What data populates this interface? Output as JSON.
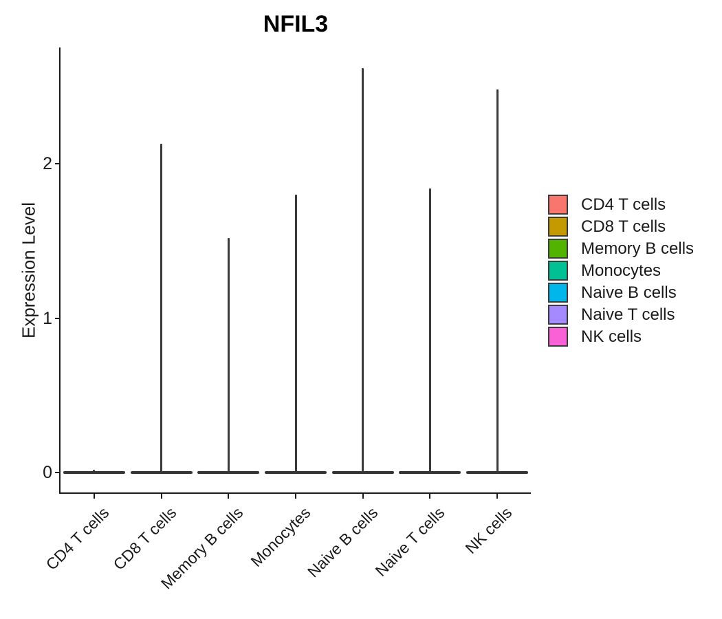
{
  "title": "NFIL3",
  "y_axis": {
    "label": "Expression Level",
    "tick_labels": [
      "0",
      "1",
      "2"
    ]
  },
  "x_axis": {
    "tick_labels": [
      "CD4 T cells",
      "CD8 T cells",
      "Memory B cells",
      "Monocytes",
      "Naive B cells",
      "Naive T cells",
      "NK cells"
    ]
  },
  "legend": {
    "entries": [
      {
        "label": "CD4 T cells",
        "color": "#F8766D"
      },
      {
        "label": "CD8 T cells",
        "color": "#C49A00"
      },
      {
        "label": "Memory B cells",
        "color": "#53B400"
      },
      {
        "label": "Monocytes",
        "color": "#00C094"
      },
      {
        "label": "Naive B cells",
        "color": "#00B6EB"
      },
      {
        "label": "Naive T cells",
        "color": "#A58AFF"
      },
      {
        "label": "NK cells",
        "color": "#FB61D7"
      }
    ]
  },
  "chart_data": {
    "type": "violin",
    "title": "NFIL3",
    "xlabel": "",
    "ylabel": "Expression Level",
    "ylim": [
      0,
      2.75
    ],
    "yticks": [
      0,
      1,
      2
    ],
    "grid": false,
    "legend_position": "right",
    "categories": [
      "CD4 T cells",
      "CD8 T cells",
      "Memory B cells",
      "Monocytes",
      "Naive B cells",
      "Naive T cells",
      "NK cells"
    ],
    "series": [
      {
        "name": "CD4 T cells",
        "color": "#F8766D",
        "max_expression": 0.02
      },
      {
        "name": "CD8 T cells",
        "color": "#C49A00",
        "max_expression": 2.13
      },
      {
        "name": "Memory B cells",
        "color": "#53B400",
        "max_expression": 1.52
      },
      {
        "name": "Monocytes",
        "color": "#00C094",
        "max_expression": 1.8
      },
      {
        "name": "Naive B cells",
        "color": "#00B6EB",
        "max_expression": 2.62
      },
      {
        "name": "Naive T cells",
        "color": "#A58AFF",
        "max_expression": 1.84
      },
      {
        "name": "NK cells",
        "color": "#FB61D7",
        "max_expression": 2.48
      }
    ],
    "distribution_shape": "density mass concentrated at 0 with a narrow spike reaching max_expression"
  }
}
